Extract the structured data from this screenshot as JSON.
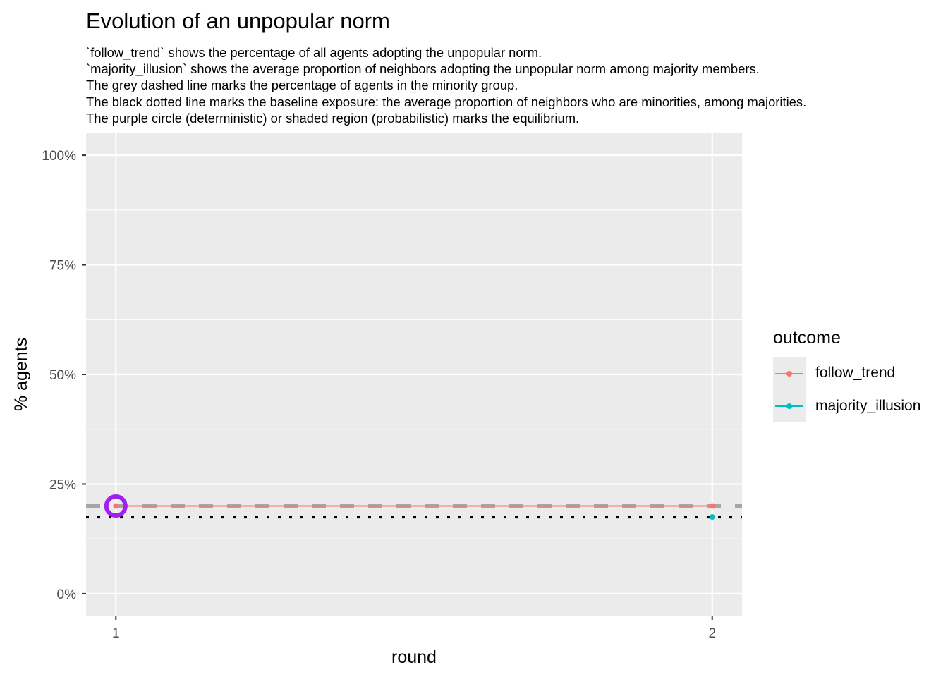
{
  "chart_data": {
    "type": "line",
    "title": "Evolution of an unpopular norm",
    "subtitle": [
      "`follow_trend` shows the percentage of all agents adopting the unpopular norm.",
      "`majority_illusion` shows the average proportion of neighbors adopting the unpopular norm among majority members.",
      "The grey dashed line marks the percentage of agents in the minority group.",
      "The black dotted line marks the baseline exposure: the average proportion of neighbors who are minorities, among majorities.",
      "The purple circle (deterministic) or shaded region (probabilistic) marks the equilibrium."
    ],
    "xlabel": "round",
    "ylabel": "% agents",
    "x": [
      1,
      2
    ],
    "x_ticks": [
      "1",
      "2"
    ],
    "xlim": [
      0.95,
      2.05
    ],
    "ylim": [
      -0.05,
      1.05
    ],
    "y_ticks": [
      0,
      0.25,
      0.5,
      0.75,
      1.0
    ],
    "y_tick_labels": [
      "0%",
      "25%",
      "50%",
      "75%",
      "100%"
    ],
    "grid": true,
    "series": [
      {
        "name": "follow_trend",
        "color": "#F8766D",
        "values": [
          0.2,
          0.2
        ]
      },
      {
        "name": "majority_illusion",
        "color": "#00BFC4",
        "values": [
          null,
          0.175
        ]
      }
    ],
    "reference_lines": [
      {
        "kind": "minority-share",
        "style": "dashed",
        "color": "#A6A6A6",
        "y": 0.2
      },
      {
        "kind": "baseline-exposure",
        "style": "dotted",
        "color": "#000000",
        "y": 0.175
      }
    ],
    "equilibrium_marker": {
      "x": 1,
      "y": 0.2,
      "color": "#A020F0",
      "shape": "circle"
    },
    "legend": {
      "title": "outcome",
      "position": "right"
    }
  }
}
